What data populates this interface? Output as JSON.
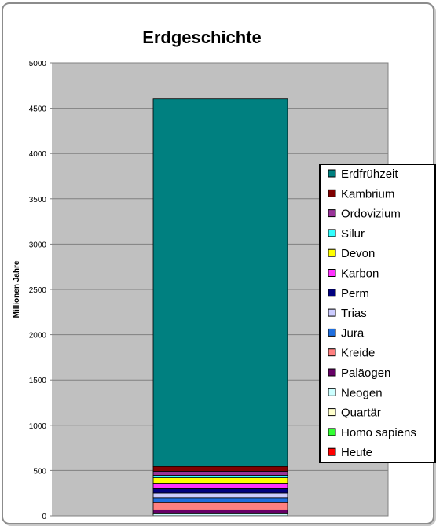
{
  "chart_data": {
    "type": "bar",
    "stacked": true,
    "title": "Erdgeschichte",
    "ylabel": "Millionen Jahre",
    "ylim": [
      0,
      5000
    ],
    "yticks": [
      0,
      500,
      1000,
      1500,
      2000,
      2500,
      3000,
      3500,
      4000,
      4500,
      5000
    ],
    "grid": true,
    "legend_position": "right",
    "plot_background": "#c0c0c0",
    "series": [
      {
        "name": "Erdfrühzeit",
        "value": 4058,
        "color": "#008080"
      },
      {
        "name": "Kambrium",
        "value": 54,
        "color": "#800000"
      },
      {
        "name": "Ordovizium",
        "value": 44,
        "color": "#993399"
      },
      {
        "name": "Silur",
        "value": 27,
        "color": "#33ffff"
      },
      {
        "name": "Devon",
        "value": 60,
        "color": "#ffff00"
      },
      {
        "name": "Karbon",
        "value": 60,
        "color": "#ff33ff"
      },
      {
        "name": "Perm",
        "value": 48,
        "color": "#000080"
      },
      {
        "name": "Trias",
        "value": 51,
        "color": "#ccccff"
      },
      {
        "name": "Jura",
        "value": 56,
        "color": "#1f6fdf"
      },
      {
        "name": "Kreide",
        "value": 79,
        "color": "#ff8080"
      },
      {
        "name": "Paläogen",
        "value": 43,
        "color": "#660066"
      },
      {
        "name": "Neogen",
        "value": 21,
        "color": "#ccffff"
      },
      {
        "name": "Quartär",
        "value": 2,
        "color": "#ffffcc"
      },
      {
        "name": "Homo sapiens",
        "value": 0.2,
        "color": "#33ff33"
      },
      {
        "name": "Heute",
        "value": 0.01,
        "color": "#ff0000"
      }
    ]
  }
}
